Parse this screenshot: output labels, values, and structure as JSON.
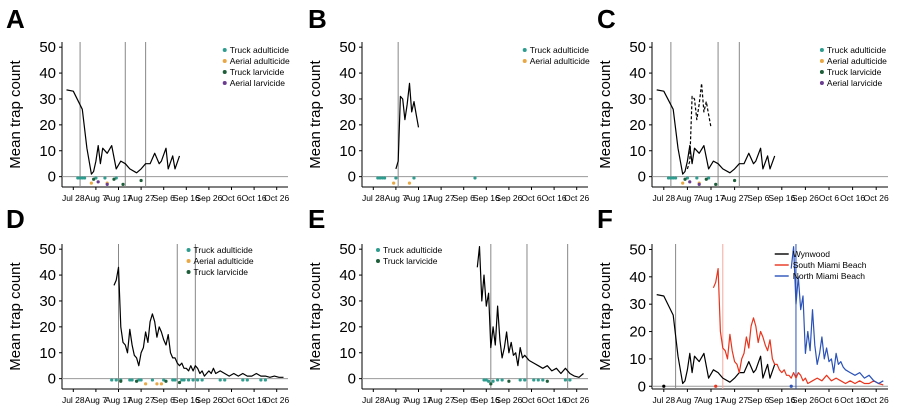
{
  "figure": {
    "y_axis_label": "Mean trap count",
    "x_tick_labels": [
      "Jul 28",
      "Aug 7",
      "Aug 17",
      "Aug 27",
      "Sep 6",
      "Sep 16",
      "Sep 26",
      "Oct 6",
      "Oct 16",
      "Oct 26"
    ],
    "y_ticks": [
      0,
      10,
      20,
      30,
      40,
      50
    ]
  },
  "colors": {
    "truck_adulticide": "#2e9c8e",
    "aerial_adulticide": "#e9a846",
    "truck_larvicide": "#1f5e3a",
    "aerial_larvicide": "#6a3d8f",
    "wynwood": "#000000",
    "south_miami_beach": "#e8341c",
    "north_miami_beach": "#2a52b8",
    "zero_line": "#999999",
    "event_line": "#888888",
    "south_event_line": "#f3a99e"
  },
  "chart_data": [
    {
      "panel": "A",
      "type": "line",
      "ylim": [
        -4,
        52
      ],
      "xlim": [
        0,
        100
      ],
      "legend": [
        "Truck adulticide",
        "Aerial adulticide",
        "Truck larvicide",
        "Aerial larvicide"
      ],
      "legend_keys": [
        "truck_adulticide",
        "aerial_adulticide",
        "truck_larvicide",
        "aerial_larvicide"
      ],
      "vlines": [
        8,
        28,
        37
      ],
      "series": [
        {
          "color": "wynwood",
          "dashed": false,
          "x": [
            2,
            5,
            9,
            11,
            13,
            14,
            15,
            16,
            17,
            18,
            20,
            22,
            24,
            26,
            28,
            30,
            33,
            35,
            37,
            39,
            41,
            43,
            44,
            46,
            47,
            49,
            50,
            52
          ],
          "y": [
            33.5,
            33,
            26,
            11,
            1,
            2,
            6,
            12,
            5,
            11,
            9,
            12,
            3,
            6,
            5,
            3,
            1.5,
            3,
            5,
            5,
            9,
            5,
            6,
            11,
            3,
            8,
            3,
            8
          ]
        }
      ],
      "markers": [
        {
          "type": "truck_adulticide",
          "x": [
            7,
            8,
            9,
            10,
            15,
            19,
            24
          ],
          "y": [
            -0.5,
            -0.5,
            -0.5,
            -0.5,
            -0.5,
            -0.5,
            -0.5
          ]
        },
        {
          "type": "aerial_adulticide",
          "x": [
            13,
            20
          ],
          "y": [
            -2.5,
            -2.5
          ]
        },
        {
          "type": "truck_larvicide",
          "x": [
            14,
            23,
            27,
            35
          ],
          "y": [
            -1,
            -1,
            -3,
            -1.5
          ]
        },
        {
          "type": "aerial_larvicide",
          "x": [
            16,
            20
          ],
          "y": [
            -2,
            -3
          ]
        }
      ]
    },
    {
      "panel": "B",
      "type": "line",
      "ylim": [
        -4,
        52
      ],
      "xlim": [
        0,
        100
      ],
      "legend": [
        "Truck adulticide",
        "Aerial adulticide"
      ],
      "legend_keys": [
        "truck_adulticide",
        "aerial_adulticide"
      ],
      "vlines": [
        16
      ],
      "series": [
        {
          "color": "wynwood",
          "dashed": false,
          "x": [
            15,
            16,
            17,
            18,
            19,
            20,
            21,
            22,
            23,
            24,
            25
          ],
          "y": [
            3,
            6,
            31,
            30,
            22,
            28,
            36,
            25,
            29,
            24,
            19
          ]
        }
      ],
      "markers": [
        {
          "type": "truck_adulticide",
          "x": [
            7,
            8,
            9,
            10,
            15,
            23,
            50
          ],
          "y": [
            -0.5,
            -0.5,
            -0.5,
            -0.5,
            -0.5,
            -0.5,
            -0.5
          ]
        },
        {
          "type": "aerial_adulticide",
          "x": [
            14,
            21
          ],
          "y": [
            -2.5,
            -2.5
          ]
        }
      ]
    },
    {
      "panel": "C",
      "type": "line",
      "ylim": [
        -4,
        52
      ],
      "xlim": [
        0,
        100
      ],
      "legend": [
        "Truck adulticide",
        "Aerial adulticide",
        "Truck larvicide",
        "Aerial larvicide"
      ],
      "legend_keys": [
        "truck_adulticide",
        "aerial_adulticide",
        "truck_larvicide",
        "aerial_larvicide"
      ],
      "vlines": [
        8,
        28,
        37
      ],
      "series": [
        {
          "color": "wynwood",
          "dashed": false,
          "x": [
            2,
            5,
            9,
            11,
            13,
            14,
            15,
            16,
            17,
            18,
            20,
            22,
            24,
            26,
            28,
            30,
            33,
            35,
            37,
            39,
            41,
            43,
            44,
            46,
            47,
            49,
            50,
            52
          ],
          "y": [
            33.5,
            33,
            26,
            11,
            1,
            2,
            6,
            12,
            5,
            11,
            9,
            12,
            3,
            6,
            5,
            3,
            1.5,
            3,
            5,
            5,
            9,
            5,
            6,
            11,
            3,
            8,
            3,
            8
          ]
        },
        {
          "color": "wynwood",
          "dashed": true,
          "x": [
            15,
            16,
            17,
            18,
            19,
            20,
            21,
            22,
            23,
            24,
            25
          ],
          "y": [
            3,
            6,
            31,
            30,
            22,
            28,
            36,
            25,
            29,
            24,
            19
          ]
        }
      ],
      "markers": [
        {
          "type": "truck_adulticide",
          "x": [
            7,
            8,
            9,
            10,
            15,
            19,
            24
          ],
          "y": [
            -0.5,
            -0.5,
            -0.5,
            -0.5,
            -0.5,
            -0.5,
            -0.5
          ]
        },
        {
          "type": "aerial_adulticide",
          "x": [
            13,
            20
          ],
          "y": [
            -2.5,
            -2.5
          ]
        },
        {
          "type": "truck_larvicide",
          "x": [
            14,
            23,
            27,
            35
          ],
          "y": [
            -1,
            -1,
            -3,
            -1.5
          ]
        },
        {
          "type": "aerial_larvicide",
          "x": [
            16,
            20
          ],
          "y": [
            -2,
            -3
          ]
        }
      ]
    },
    {
      "panel": "D",
      "type": "line",
      "ylim": [
        -4,
        52
      ],
      "xlim": [
        0,
        100
      ],
      "legend": [
        "Truck adulticide",
        "Aerial adulticide",
        "Truck larvicide"
      ],
      "legend_keys": [
        "truck_adulticide",
        "aerial_adulticide",
        "truck_larvicide"
      ],
      "vlines": [
        25,
        51,
        59
      ],
      "series": [
        {
          "color": "wynwood",
          "dashed": false,
          "x": [
            23,
            24,
            25,
            26,
            27,
            28,
            29,
            30,
            31,
            32,
            33,
            34,
            35,
            36,
            37,
            38,
            39,
            40,
            41,
            42,
            43,
            44,
            45,
            46,
            47,
            48,
            49,
            50,
            51,
            52,
            53,
            54,
            55,
            56,
            57,
            58,
            59,
            60,
            61,
            62,
            63,
            64,
            65,
            66,
            67,
            68,
            70,
            72,
            74,
            76,
            78,
            80,
            82,
            84,
            86,
            88,
            90,
            92,
            94,
            96,
            98
          ],
          "y": [
            36,
            38,
            43,
            20,
            14,
            13,
            10,
            19,
            13,
            9,
            8,
            5,
            10,
            12,
            18,
            14,
            22,
            25,
            22,
            16,
            20,
            18,
            15,
            13,
            17,
            10,
            8,
            8,
            6,
            5,
            6,
            4,
            4,
            3,
            5,
            3,
            5,
            4,
            2,
            3,
            1,
            2,
            3,
            2,
            4,
            2,
            3,
            2,
            1,
            2,
            1,
            2,
            1,
            1,
            2,
            1,
            1,
            0.5,
            1,
            0.5,
            0.5
          ]
        }
      ],
      "markers": [
        {
          "type": "truck_adulticide",
          "x": [
            22,
            24,
            26,
            30,
            31,
            34,
            35,
            40,
            45,
            49,
            50,
            53,
            54,
            56,
            58,
            60,
            62,
            70,
            72,
            80,
            82,
            88,
            90
          ],
          "y": [
            -0.5,
            -0.5,
            -0.5,
            -0.5,
            -0.5,
            -0.5,
            -0.5,
            -0.5,
            -0.5,
            -0.5,
            -0.5,
            -0.5,
            -0.5,
            -0.5,
            -0.5,
            -0.5,
            -0.5,
            -0.5,
            -0.5,
            -0.5,
            -0.5,
            -0.5,
            -0.5
          ]
        },
        {
          "type": "aerial_adulticide",
          "x": [
            37,
            42,
            44
          ],
          "y": [
            -2,
            -2,
            -2
          ]
        },
        {
          "type": "truck_larvicide",
          "x": [
            26,
            33,
            46,
            52
          ],
          "y": [
            -1,
            -1,
            -1,
            -1.5
          ]
        }
      ]
    },
    {
      "panel": "E",
      "type": "line",
      "ylim": [
        -4,
        52
      ],
      "xlim": [
        0,
        100
      ],
      "legend": [
        "Truck adulticide",
        "Truck larvicide"
      ],
      "legend_keys": [
        "truck_adulticide",
        "truck_larvicide"
      ],
      "vlines": [
        57,
        73,
        91
      ],
      "series": [
        {
          "color": "wynwood",
          "dashed": false,
          "x": [
            51,
            52,
            53,
            54,
            55,
            56,
            57,
            58,
            59,
            60,
            61,
            62,
            63,
            64,
            65,
            66,
            67,
            68,
            69,
            70,
            71,
            72,
            74,
            76,
            78,
            80,
            82,
            84,
            86,
            88,
            90,
            92,
            94,
            96,
            98
          ],
          "y": [
            43,
            51,
            30,
            40,
            28,
            33,
            12,
            20,
            13,
            28,
            15,
            8,
            12,
            18,
            10,
            14,
            9,
            10,
            5,
            12,
            8,
            9,
            7,
            6,
            5,
            4,
            5,
            3,
            4,
            2,
            4,
            2,
            1,
            0.5,
            2
          ]
        }
      ],
      "markers": [
        {
          "type": "truck_adulticide",
          "x": [
            54,
            55,
            56,
            58,
            60,
            62,
            70,
            72,
            76,
            78,
            80,
            90,
            92
          ],
          "y": [
            -0.5,
            -0.5,
            -1,
            -1,
            -0.5,
            -0.5,
            -0.5,
            -0.5,
            -0.5,
            -0.5,
            -0.5,
            -0.5,
            -0.5
          ]
        },
        {
          "type": "truck_larvicide",
          "x": [
            57,
            65,
            82
          ],
          "y": [
            -2,
            -1,
            -1
          ]
        }
      ]
    },
    {
      "panel": "F",
      "type": "line",
      "ylim": [
        -1,
        52
      ],
      "xlim": [
        0,
        100
      ],
      "legend": [
        "Wynwood",
        "South Miami Beach",
        "North Miami Beach"
      ],
      "legend_keys": [
        "wynwood",
        "south_miami_beach",
        "north_miami_beach"
      ],
      "vlines": [
        10
      ],
      "vlines_red": [
        30
      ],
      "vlines_blue": [
        61
      ],
      "series": [
        {
          "color": "wynwood",
          "dashed": false,
          "x": [
            2,
            5,
            9,
            11,
            13,
            14,
            15,
            16,
            17,
            18,
            20,
            22,
            24,
            26,
            28,
            30,
            33,
            35,
            37,
            39,
            41,
            43,
            44,
            46,
            47,
            49,
            50,
            52
          ],
          "y": [
            33.5,
            33,
            26,
            11,
            1,
            2,
            6,
            12,
            5,
            11,
            9,
            12,
            3,
            6,
            5,
            3,
            1.5,
            3,
            5,
            5,
            9,
            5,
            6,
            11,
            3,
            8,
            3,
            8
          ]
        },
        {
          "color": "south_miami_beach",
          "dashed": false,
          "x": [
            26,
            27,
            28,
            29,
            30,
            31,
            32,
            33,
            34,
            35,
            36,
            37,
            38,
            39,
            40,
            41,
            42,
            43,
            44,
            45,
            46,
            47,
            48,
            49,
            50,
            51,
            52,
            53,
            54,
            55,
            56,
            57,
            58,
            59,
            60,
            61,
            62,
            63,
            64,
            65,
            66,
            68,
            70,
            72,
            74,
            76,
            78,
            80,
            82,
            84,
            86,
            88,
            90,
            92,
            94,
            96,
            98
          ],
          "y": [
            36,
            38,
            43,
            20,
            14,
            13,
            10,
            19,
            13,
            9,
            8,
            5,
            10,
            12,
            18,
            14,
            22,
            25,
            22,
            16,
            20,
            18,
            15,
            13,
            17,
            10,
            8,
            8,
            6,
            5,
            6,
            4,
            4,
            3,
            5,
            3,
            5,
            4,
            2,
            3,
            1,
            2,
            3,
            2,
            4,
            2,
            3,
            2,
            1,
            2,
            1,
            2,
            1,
            1,
            2,
            1,
            0.5
          ]
        },
        {
          "color": "north_miami_beach",
          "dashed": false,
          "x": [
            59,
            60,
            61,
            62,
            63,
            64,
            65,
            66,
            67,
            68,
            69,
            70,
            71,
            72,
            73,
            74,
            75,
            76,
            77,
            78,
            79,
            80,
            81,
            82,
            84,
            86,
            88,
            90,
            92,
            94,
            96,
            98
          ],
          "y": [
            43,
            51,
            30,
            40,
            28,
            33,
            12,
            20,
            13,
            28,
            15,
            8,
            12,
            18,
            10,
            14,
            9,
            10,
            5,
            12,
            8,
            9,
            7,
            6,
            5,
            4,
            5,
            3,
            4,
            2,
            1,
            2
          ]
        }
      ],
      "markers": [
        {
          "type": "wynwood",
          "x": [
            5
          ],
          "y": [
            0
          ]
        },
        {
          "type": "south_miami_beach",
          "x": [
            27
          ],
          "y": [
            0
          ]
        },
        {
          "type": "north_miami_beach",
          "x": [
            59
          ],
          "y": [
            0
          ]
        }
      ]
    }
  ]
}
